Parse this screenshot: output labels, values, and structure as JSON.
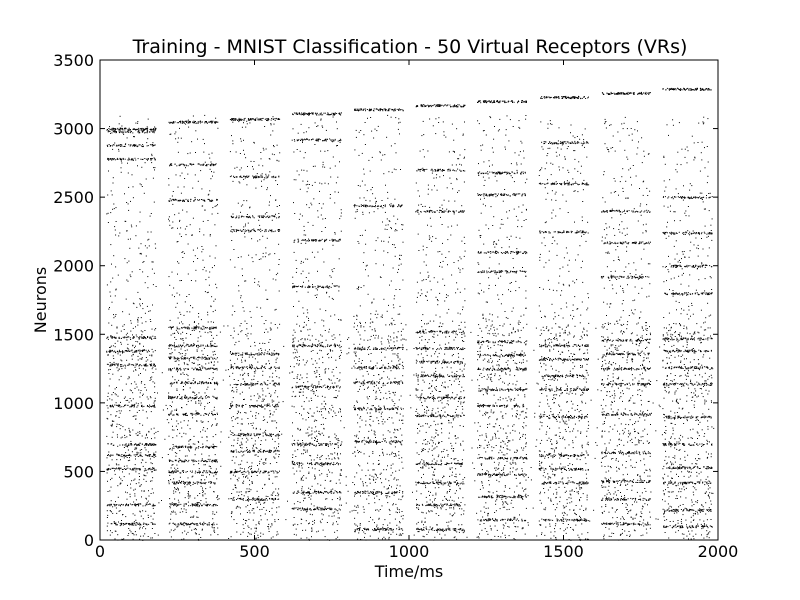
{
  "chart_data": {
    "type": "scatter",
    "title": "Training - MNIST Classification - 50 Virtual Receptors (VRs)",
    "xlabel": "Time/ms",
    "ylabel": "Neurons",
    "xlim": [
      0,
      2000
    ],
    "ylim": [
      0,
      3500
    ],
    "x_ticks": [
      0,
      500,
      1000,
      1500,
      2000
    ],
    "y_ticks": [
      0,
      500,
      1000,
      1500,
      2000,
      2500,
      3000,
      3500
    ],
    "grid": false,
    "legend": "none",
    "marker_color": "#000000",
    "stimulus_windows_ms": [
      [
        20,
        180
      ],
      [
        220,
        380
      ],
      [
        420,
        580
      ],
      [
        620,
        780
      ],
      [
        820,
        980
      ],
      [
        1020,
        1180
      ],
      [
        1220,
        1380
      ],
      [
        1420,
        1580
      ],
      [
        1620,
        1780
      ],
      [
        1820,
        1980
      ]
    ],
    "dense_bands": [
      {
        "window": 0,
        "neurons": [
          3000,
          2980,
          2880,
          2780,
          1480,
          1380,
          1280,
          980,
          700,
          620,
          520,
          260,
          120
        ]
      },
      {
        "window": 1,
        "neurons": [
          3050,
          2740,
          2480,
          1550,
          1420,
          1330,
          1250,
          1150,
          1040,
          920,
          680,
          580,
          500,
          420,
          260,
          120
        ]
      },
      {
        "window": 2,
        "neurons": [
          3070,
          2650,
          2360,
          2260,
          1360,
          1260,
          1140,
          980,
          770,
          650,
          500,
          300
        ]
      },
      {
        "window": 3,
        "neurons": [
          3110,
          2920,
          2190,
          1850,
          1420,
          1120,
          700,
          560,
          350,
          230
        ]
      },
      {
        "window": 4,
        "neurons": [
          3140,
          2440,
          1400,
          1260,
          1150,
          960,
          720,
          350,
          80
        ]
      },
      {
        "window": 5,
        "neurons": [
          3170,
          2700,
          2400,
          1520,
          1400,
          1300,
          1200,
          1040,
          910,
          560,
          420,
          260,
          80
        ]
      },
      {
        "window": 6,
        "neurons": [
          3200,
          2680,
          2520,
          2100,
          1960,
          1450,
          1350,
          1250,
          1100,
          980,
          600,
          480,
          320,
          150
        ]
      },
      {
        "window": 7,
        "neurons": [
          3230,
          2900,
          2600,
          2250,
          1420,
          1320,
          1200,
          1100,
          900,
          620,
          520,
          420,
          150
        ]
      },
      {
        "window": 8,
        "neurons": [
          3260,
          2400,
          2170,
          1920,
          1460,
          1360,
          1250,
          1140,
          920,
          640,
          430,
          300,
          120
        ]
      },
      {
        "window": 9,
        "neurons": [
          3290,
          2500,
          2240,
          2000,
          1800,
          1470,
          1380,
          1260,
          1140,
          900,
          700,
          530,
          420,
          220,
          100
        ]
      }
    ]
  }
}
